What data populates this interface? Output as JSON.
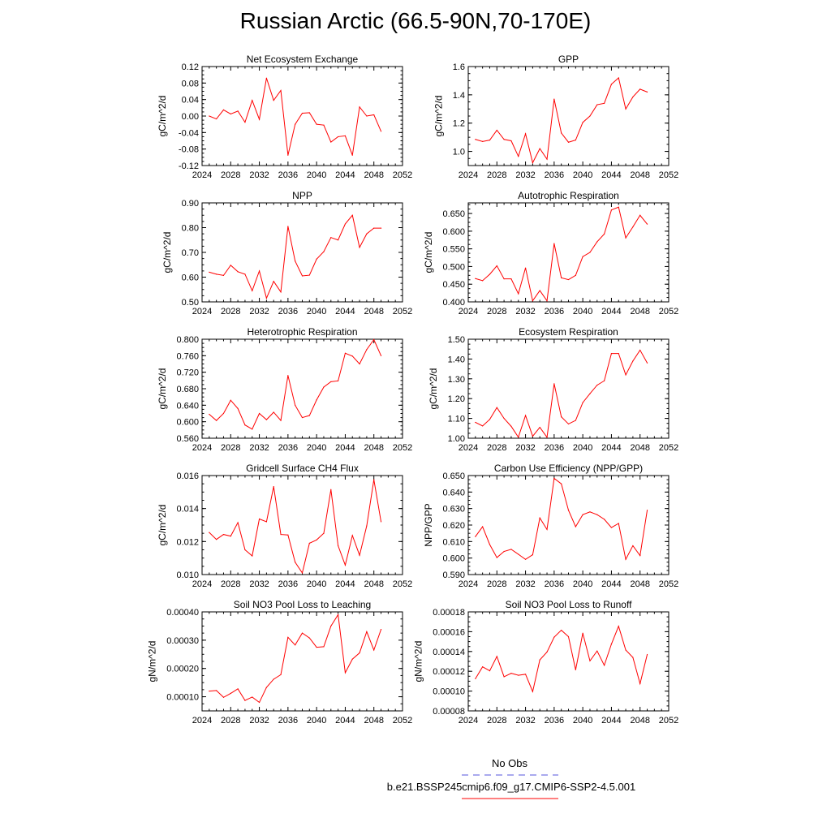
{
  "title": "Russian Arctic (66.5-90N,70-170E)",
  "colors": {
    "model": "#ff0000",
    "obs": "#5555dd"
  },
  "legend": {
    "obs_label": "No Obs",
    "model_label": "b.e21.BSSP245cmip6.f09_g17.CMIP6-SSP2-4.5.001"
  },
  "chart_data": [
    {
      "type": "line",
      "title": "Net Ecosystem Exchange",
      "ylabel": "gC/m^2/d",
      "xlim": [
        2024,
        2052
      ],
      "ylim": [
        -0.12,
        0.12
      ],
      "xticks": [
        "2024",
        "2028",
        "2032",
        "2036",
        "2040",
        "2044",
        "2048",
        "2052"
      ],
      "yticks": [
        "-0.12",
        "-0.08",
        "-0.04",
        "0.00",
        "0.04",
        "0.08",
        "0.12"
      ],
      "series": [
        {
          "x": [
            2025,
            2026,
            2027,
            2028,
            2029,
            2030,
            2031,
            2032,
            2033,
            2034,
            2035,
            2036,
            2037,
            2038,
            2039,
            2040,
            2041,
            2042,
            2043,
            2044,
            2045,
            2046,
            2047,
            2048,
            2049
          ],
          "values": [
            0.0,
            -0.007,
            0.015,
            0.005,
            0.012,
            -0.015,
            0.038,
            -0.008,
            0.092,
            0.038,
            0.062,
            -0.095,
            -0.02,
            0.007,
            0.008,
            -0.02,
            -0.022,
            -0.063,
            -0.05,
            -0.048,
            -0.095,
            0.022,
            0.0,
            0.003,
            -0.037
          ]
        }
      ]
    },
    {
      "type": "line",
      "title": "GPP",
      "ylabel": "gC/m^2/d",
      "xlim": [
        2024,
        2052
      ],
      "ylim": [
        0.9,
        1.6
      ],
      "xticks": [
        "2024",
        "2028",
        "2032",
        "2036",
        "2040",
        "2044",
        "2048",
        "2052"
      ],
      "yticks": [
        "1.0",
        "1.2",
        "1.4",
        "1.6"
      ],
      "series": [
        {
          "x": [
            2025,
            2026,
            2027,
            2028,
            2029,
            2030,
            2031,
            2032,
            2033,
            2034,
            2035,
            2036,
            2037,
            2038,
            2039,
            2040,
            2041,
            2042,
            2043,
            2044,
            2045,
            2046,
            2047,
            2048,
            2049
          ],
          "values": [
            1.085,
            1.07,
            1.08,
            1.15,
            1.085,
            1.075,
            0.965,
            1.125,
            0.92,
            1.02,
            0.945,
            1.37,
            1.13,
            1.065,
            1.08,
            1.205,
            1.25,
            1.33,
            1.34,
            1.475,
            1.52,
            1.3,
            1.385,
            1.44,
            1.42
          ]
        }
      ]
    },
    {
      "type": "line",
      "title": "NPP",
      "ylabel": "gC/m^2/d",
      "xlim": [
        2024,
        2052
      ],
      "ylim": [
        0.5,
        0.9
      ],
      "xticks": [
        "2024",
        "2028",
        "2032",
        "2036",
        "2040",
        "2044",
        "2048",
        "2052"
      ],
      "yticks": [
        "0.50",
        "0.60",
        "0.70",
        "0.80",
        "0.90"
      ],
      "series": [
        {
          "x": [
            2025,
            2026,
            2027,
            2028,
            2029,
            2030,
            2031,
            2032,
            2033,
            2034,
            2035,
            2036,
            2037,
            2038,
            2039,
            2040,
            2041,
            2042,
            2043,
            2044,
            2045,
            2046,
            2047,
            2048,
            2049
          ],
          "values": [
            0.62,
            0.612,
            0.607,
            0.648,
            0.622,
            0.612,
            0.545,
            0.625,
            0.515,
            0.583,
            0.54,
            0.805,
            0.665,
            0.605,
            0.608,
            0.673,
            0.703,
            0.76,
            0.75,
            0.815,
            0.85,
            0.72,
            0.775,
            0.798,
            0.798
          ]
        }
      ]
    },
    {
      "type": "line",
      "title": "Autotrophic Respiration",
      "ylabel": "gC/m^2/d",
      "xlim": [
        2024,
        2052
      ],
      "ylim": [
        0.4,
        0.68
      ],
      "xticks": [
        "2024",
        "2028",
        "2032",
        "2036",
        "2040",
        "2044",
        "2048",
        "2052"
      ],
      "yticks": [
        "0.400",
        "0.450",
        "0.500",
        "0.550",
        "0.600",
        "0.650"
      ],
      "series": [
        {
          "x": [
            2025,
            2026,
            2027,
            2028,
            2029,
            2030,
            2031,
            2032,
            2033,
            2034,
            2035,
            2036,
            2037,
            2038,
            2039,
            2040,
            2041,
            2042,
            2043,
            2044,
            2045,
            2046,
            2047,
            2048,
            2049
          ],
          "values": [
            0.466,
            0.46,
            0.478,
            0.502,
            0.465,
            0.465,
            0.423,
            0.496,
            0.403,
            0.432,
            0.403,
            0.565,
            0.468,
            0.463,
            0.475,
            0.528,
            0.54,
            0.57,
            0.592,
            0.66,
            0.668,
            0.581,
            0.612,
            0.645,
            0.62
          ]
        }
      ]
    },
    {
      "type": "line",
      "title": "Heterotrophic Respiration",
      "ylabel": "gC/m^2/d",
      "xlim": [
        2024,
        2052
      ],
      "ylim": [
        0.56,
        0.8
      ],
      "xticks": [
        "2024",
        "2028",
        "2032",
        "2036",
        "2040",
        "2044",
        "2048",
        "2052"
      ],
      "yticks": [
        "0.560",
        "0.600",
        "0.640",
        "0.680",
        "0.720",
        "0.760",
        "0.800"
      ],
      "series": [
        {
          "x": [
            2025,
            2026,
            2027,
            2028,
            2029,
            2030,
            2031,
            2032,
            2033,
            2034,
            2035,
            2036,
            2037,
            2038,
            2039,
            2040,
            2041,
            2042,
            2043,
            2044,
            2045,
            2046,
            2047,
            2048,
            2049
          ],
          "values": [
            0.618,
            0.603,
            0.62,
            0.652,
            0.632,
            0.592,
            0.582,
            0.62,
            0.605,
            0.623,
            0.603,
            0.712,
            0.64,
            0.61,
            0.615,
            0.653,
            0.684,
            0.697,
            0.699,
            0.766,
            0.759,
            0.74,
            0.775,
            0.799,
            0.76
          ]
        }
      ]
    },
    {
      "type": "line",
      "title": "Ecosystem Respiration",
      "ylabel": "gC/m^2/d",
      "xlim": [
        2024,
        2052
      ],
      "ylim": [
        1.0,
        1.5
      ],
      "xticks": [
        "2024",
        "2028",
        "2032",
        "2036",
        "2040",
        "2044",
        "2048",
        "2052"
      ],
      "yticks": [
        "1.00",
        "1.10",
        "1.20",
        "1.30",
        "1.40",
        "1.50"
      ],
      "series": [
        {
          "x": [
            2025,
            2026,
            2027,
            2028,
            2029,
            2030,
            2031,
            2032,
            2033,
            2034,
            2035,
            2036,
            2037,
            2038,
            2039,
            2040,
            2041,
            2042,
            2043,
            2044,
            2045,
            2046,
            2047,
            2048,
            2049
          ],
          "values": [
            1.08,
            1.062,
            1.095,
            1.155,
            1.1,
            1.06,
            1.005,
            1.115,
            1.01,
            1.055,
            1.005,
            1.275,
            1.108,
            1.072,
            1.09,
            1.18,
            1.225,
            1.268,
            1.29,
            1.428,
            1.428,
            1.32,
            1.39,
            1.445,
            1.38
          ]
        }
      ]
    },
    {
      "type": "line",
      "title": "Gridcell Surface CH4 Flux",
      "ylabel": "gC/m^2/d",
      "xlim": [
        2024,
        2052
      ],
      "ylim": [
        0.01,
        0.016
      ],
      "xticks": [
        "2024",
        "2028",
        "2032",
        "2036",
        "2040",
        "2044",
        "2048",
        "2052"
      ],
      "yticks": [
        "0.010",
        "0.012",
        "0.014",
        "0.016"
      ],
      "series": [
        {
          "x": [
            2025,
            2026,
            2027,
            2028,
            2029,
            2030,
            2031,
            2032,
            2033,
            2034,
            2035,
            2036,
            2037,
            2038,
            2039,
            2040,
            2041,
            2042,
            2043,
            2044,
            2045,
            2046,
            2047,
            2048,
            2049
          ],
          "values": [
            0.01255,
            0.01213,
            0.01243,
            0.01233,
            0.01315,
            0.0115,
            0.01113,
            0.01337,
            0.0132,
            0.01533,
            0.01243,
            0.0124,
            0.01075,
            0.0101,
            0.0119,
            0.0121,
            0.0125,
            0.01515,
            0.01175,
            0.01057,
            0.01237,
            0.01117,
            0.01295,
            0.01575,
            0.0132
          ]
        }
      ]
    },
    {
      "type": "line",
      "title": "Carbon Use Efficiency (NPP/GPP)",
      "ylabel": "NPP/GPP",
      "xlim": [
        2024,
        2052
      ],
      "ylim": [
        0.59,
        0.65
      ],
      "xticks": [
        "2024",
        "2028",
        "2032",
        "2036",
        "2040",
        "2044",
        "2048",
        "2052"
      ],
      "yticks": [
        "0.590",
        "0.600",
        "0.610",
        "0.620",
        "0.630",
        "0.640",
        "0.650"
      ],
      "series": [
        {
          "x": [
            2025,
            2026,
            2027,
            2028,
            2029,
            2030,
            2031,
            2032,
            2033,
            2034,
            2035,
            2036,
            2037,
            2038,
            2039,
            2040,
            2041,
            2042,
            2043,
            2044,
            2045,
            2046,
            2047,
            2048,
            2049
          ],
          "values": [
            0.613,
            0.619,
            0.6082,
            0.6003,
            0.604,
            0.6053,
            0.6023,
            0.5992,
            0.602,
            0.6243,
            0.6173,
            0.6483,
            0.645,
            0.629,
            0.619,
            0.6263,
            0.628,
            0.6263,
            0.6235,
            0.6185,
            0.621,
            0.5992,
            0.6075,
            0.6015,
            0.629
          ]
        }
      ]
    },
    {
      "type": "line",
      "title": "Soil NO3 Pool Loss to Leaching",
      "ylabel": "gN/m^2/d",
      "xlim": [
        2024,
        2052
      ],
      "ylim": [
        5e-05,
        0.0004
      ],
      "xticks": [
        "2024",
        "2028",
        "2032",
        "2036",
        "2040",
        "2044",
        "2048",
        "2052"
      ],
      "yticks": [
        "0.00010",
        "0.00020",
        "0.00030",
        "0.00040"
      ],
      "series": [
        {
          "x": [
            2025,
            2026,
            2027,
            2028,
            2029,
            2030,
            2031,
            2032,
            2033,
            2034,
            2035,
            2036,
            2037,
            2038,
            2039,
            2040,
            2041,
            2042,
            2043,
            2044,
            2045,
            2046,
            2047,
            2048,
            2049
          ],
          "values": [
            0.00012,
            0.000122,
            9.8e-05,
            0.000112,
            0.000128,
            8.7e-05,
            9.9e-05,
            8e-05,
            0.000133,
            0.000162,
            0.000178,
            0.00031,
            0.000283,
            0.000325,
            0.000308,
            0.000275,
            0.000277,
            0.00035,
            0.00039,
            0.000185,
            0.000233,
            0.000255,
            0.00033,
            0.000265,
            0.000338
          ]
        }
      ]
    },
    {
      "type": "line",
      "title": "Soil NO3 Pool Loss to Runoff",
      "ylabel": "gN/m^2/d",
      "xlim": [
        2024,
        2052
      ],
      "ylim": [
        8e-05,
        0.00018
      ],
      "xticks": [
        "2024",
        "2028",
        "2032",
        "2036",
        "2040",
        "2044",
        "2048",
        "2052"
      ],
      "yticks": [
        "0.00008",
        "0.00010",
        "0.00012",
        "0.00014",
        "0.00016",
        "0.00018"
      ],
      "series": [
        {
          "x": [
            2025,
            2026,
            2027,
            2028,
            2029,
            2030,
            2031,
            2032,
            2033,
            2034,
            2035,
            2036,
            2037,
            2038,
            2039,
            2040,
            2041,
            2042,
            2043,
            2044,
            2045,
            2046,
            2047,
            2048,
            2049
          ],
          "values": [
            0.0001125,
            0.0001245,
            0.0001205,
            0.000135,
            0.0001145,
            0.000118,
            0.000116,
            0.000117,
            9.95e-05,
            0.0001315,
            0.0001395,
            0.0001545,
            0.0001615,
            0.000155,
            0.0001215,
            0.0001585,
            0.0001305,
            0.0001405,
            0.000126,
            0.0001475,
            0.0001655,
            0.0001415,
            0.000134,
            0.0001075,
            0.000137
          ]
        }
      ]
    }
  ]
}
